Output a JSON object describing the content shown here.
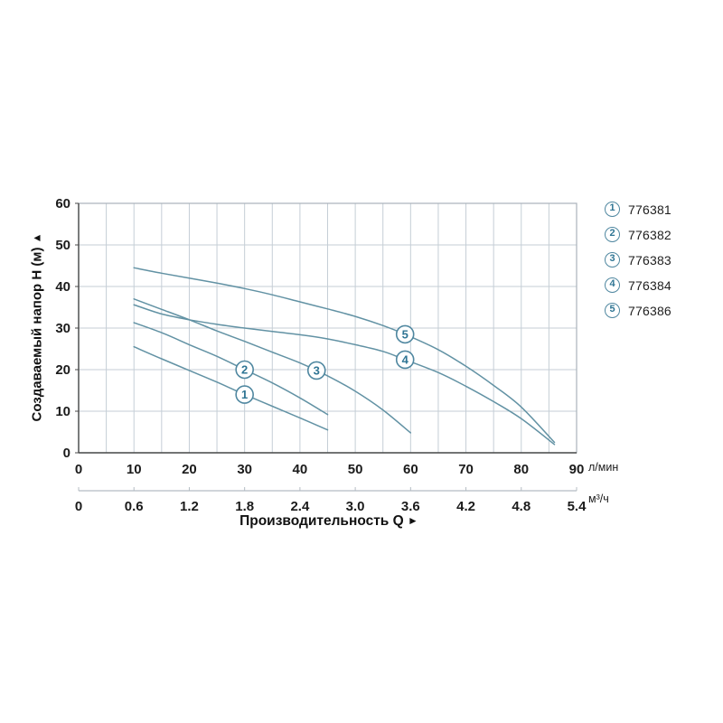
{
  "y_axis": {
    "title": "Создаваемый напор H (м)",
    "arrow_up": "▲",
    "min": 0,
    "max": 60,
    "tick_step": 10
  },
  "x_axis": {
    "title": "Производительность Q",
    "arrow_right": "►",
    "unit_primary": "л/мин",
    "unit_secondary": "м³/ч",
    "min": 0,
    "max": 90,
    "tick_step": 10,
    "grid_step": 5,
    "secondary_labels": [
      "0",
      "0.6",
      "1.2",
      "1.8",
      "2.4",
      "3.0",
      "3.6",
      "4.2",
      "4.8",
      "5.4"
    ]
  },
  "legend": {
    "items": [
      {
        "marker": "1",
        "model": "776381"
      },
      {
        "marker": "2",
        "model": "776382"
      },
      {
        "marker": "3",
        "model": "776383"
      },
      {
        "marker": "4",
        "model": "776384"
      },
      {
        "marker": "5",
        "model": "776386"
      }
    ]
  },
  "colors": {
    "curve": "#6292a4",
    "grid": "#c5ced6",
    "frame": "#a9b2ba",
    "axis": "#4a4a4a",
    "tick_text": "#1b1b1b",
    "marker_stroke": "#4f87a0",
    "marker_text": "#2f7594",
    "secondary_line": "#b4bcc3"
  },
  "chart_data": {
    "type": "line",
    "title": "",
    "xlabel": "Производительность Q",
    "ylabel": "Создаваемый напор H (м)",
    "x_units": [
      "л/мин",
      "м³/ч"
    ],
    "xlim": [
      0,
      90
    ],
    "ylim": [
      0,
      60
    ],
    "grid": "on",
    "legend_position": "right-outside",
    "series": [
      {
        "name": "776381",
        "marker": "1",
        "marker_at": [
          30,
          14
        ],
        "points": [
          [
            10,
            25.5
          ],
          [
            15,
            22.6
          ],
          [
            20,
            19.8
          ],
          [
            25,
            17
          ],
          [
            30,
            14
          ],
          [
            35,
            11.2
          ],
          [
            40,
            8.4
          ],
          [
            45,
            5.5
          ]
        ]
      },
      {
        "name": "776382",
        "marker": "2",
        "marker_at": [
          30,
          20
        ],
        "points": [
          [
            10,
            31.3
          ],
          [
            15,
            28.9
          ],
          [
            20,
            26
          ],
          [
            25,
            23.2
          ],
          [
            30,
            20
          ],
          [
            35,
            16.8
          ],
          [
            40,
            13.2
          ],
          [
            45,
            9.2
          ]
        ]
      },
      {
        "name": "776383",
        "marker": "3",
        "marker_at": [
          43,
          19.8
        ],
        "points": [
          [
            10,
            37
          ],
          [
            15,
            34.5
          ],
          [
            20,
            32
          ],
          [
            25,
            29.3
          ],
          [
            30,
            26.8
          ],
          [
            35,
            24.2
          ],
          [
            40,
            21.6
          ],
          [
            45,
            18.5
          ],
          [
            50,
            14.8
          ],
          [
            55,
            10.3
          ],
          [
            60,
            4.8
          ]
        ]
      },
      {
        "name": "776384",
        "marker": "4",
        "marker_at": [
          59,
          22.4
        ],
        "points": [
          [
            10,
            35.6
          ],
          [
            15,
            33.4
          ],
          [
            20,
            32
          ],
          [
            25,
            30.9
          ],
          [
            30,
            30
          ],
          [
            35,
            29.2
          ],
          [
            40,
            28.4
          ],
          [
            45,
            27.4
          ],
          [
            50,
            26
          ],
          [
            55,
            24.4
          ],
          [
            59,
            22.4
          ],
          [
            65,
            19.3
          ],
          [
            70,
            16
          ],
          [
            75,
            12.3
          ],
          [
            80,
            8.2
          ],
          [
            86,
            2
          ]
        ]
      },
      {
        "name": "776386",
        "marker": "5",
        "marker_at": [
          59,
          28.5
        ],
        "points": [
          [
            10,
            44.5
          ],
          [
            15,
            43.2
          ],
          [
            20,
            42
          ],
          [
            25,
            40.8
          ],
          [
            30,
            39.5
          ],
          [
            35,
            38
          ],
          [
            40,
            36.3
          ],
          [
            45,
            34.6
          ],
          [
            50,
            32.8
          ],
          [
            55,
            30.6
          ],
          [
            59,
            28.5
          ],
          [
            65,
            24.8
          ],
          [
            70,
            20.8
          ],
          [
            75,
            16.2
          ],
          [
            80,
            11
          ],
          [
            86,
            2.5
          ]
        ]
      }
    ]
  }
}
